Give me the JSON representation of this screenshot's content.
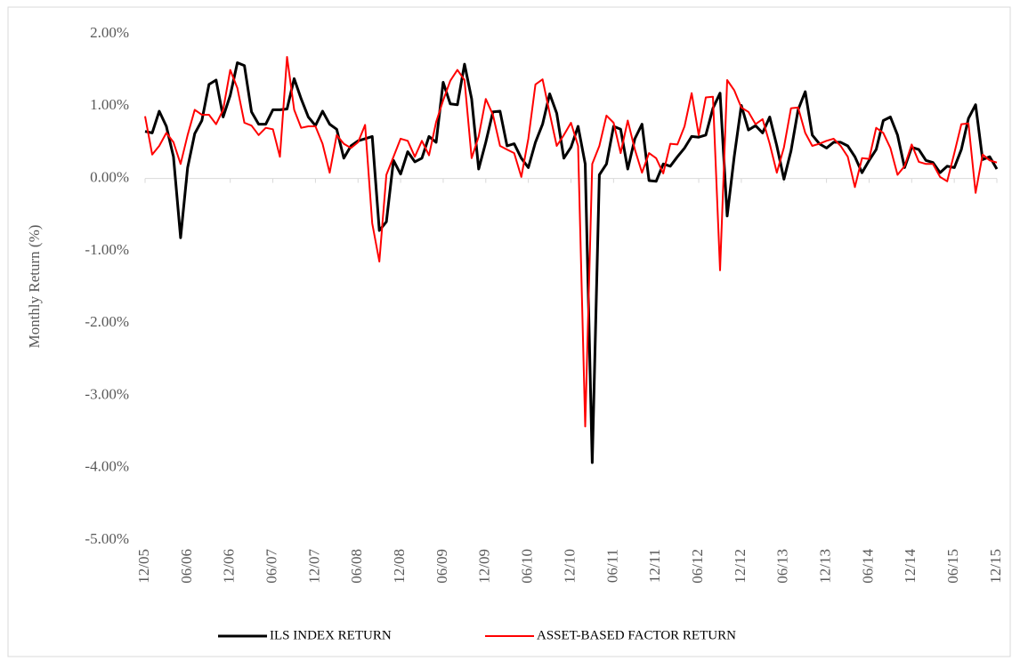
{
  "chart_data": {
    "type": "line",
    "y_label": "Monthly Return (%)",
    "categories": [
      "12/05",
      null,
      null,
      null,
      null,
      null,
      "06/06",
      null,
      null,
      null,
      null,
      null,
      "12/06",
      null,
      null,
      null,
      null,
      null,
      "06/07",
      null,
      null,
      null,
      null,
      null,
      "12/07",
      null,
      null,
      null,
      null,
      null,
      "06/08",
      null,
      null,
      null,
      null,
      null,
      "12/08",
      null,
      null,
      null,
      null,
      null,
      "06/09",
      null,
      null,
      null,
      null,
      null,
      "12/09",
      null,
      null,
      null,
      null,
      null,
      "06/10",
      null,
      null,
      null,
      null,
      null,
      "12/10",
      null,
      null,
      null,
      null,
      null,
      "06/11",
      null,
      null,
      null,
      null,
      null,
      "12/11",
      null,
      null,
      null,
      null,
      null,
      "06/12",
      null,
      null,
      null,
      null,
      null,
      "12/12",
      null,
      null,
      null,
      null,
      null,
      "06/13",
      null,
      null,
      null,
      null,
      null,
      "12/13",
      null,
      null,
      null,
      null,
      null,
      "06/14",
      null,
      null,
      null,
      null,
      null,
      "12/14",
      null,
      null,
      null,
      null,
      null,
      "06/15",
      null,
      null,
      null,
      null,
      null,
      "12/15"
    ],
    "series": [
      {
        "name": "ILS INDEX RETURN",
        "color": "#000000",
        "values": [
          0.65,
          0.63,
          0.93,
          0.72,
          0.3,
          -0.82,
          0.15,
          0.62,
          0.8,
          1.3,
          1.36,
          0.85,
          1.15,
          1.6,
          1.56,
          0.92,
          0.75,
          0.75,
          0.95,
          0.95,
          0.96,
          1.38,
          1.1,
          0.85,
          0.73,
          0.93,
          0.75,
          0.68,
          0.28,
          0.45,
          0.52,
          0.55,
          0.58,
          -0.72,
          -0.6,
          0.25,
          0.06,
          0.37,
          0.23,
          0.28,
          0.58,
          0.5,
          1.33,
          1.03,
          1.02,
          1.58,
          1.1,
          0.13,
          0.5,
          0.92,
          0.93,
          0.45,
          0.48,
          0.28,
          0.15,
          0.5,
          0.75,
          1.17,
          0.9,
          0.28,
          0.43,
          0.72,
          0.2,
          -3.93,
          0.05,
          0.2,
          0.72,
          0.68,
          0.13,
          0.55,
          0.75,
          -0.03,
          -0.04,
          0.2,
          0.17,
          0.3,
          0.42,
          0.58,
          0.57,
          0.6,
          0.97,
          1.18,
          -0.52,
          0.3,
          1.01,
          0.67,
          0.73,
          0.63,
          0.85,
          0.45,
          -0.01,
          0.38,
          0.95,
          1.2,
          0.6,
          0.48,
          0.42,
          0.5,
          0.5,
          0.45,
          0.3,
          0.08,
          0.25,
          0.4,
          0.8,
          0.85,
          0.6,
          0.15,
          0.43,
          0.4,
          0.25,
          0.22,
          0.08,
          0.17,
          0.15,
          0.4,
          0.83,
          1.02,
          0.26,
          0.3,
          0.13
        ]
      },
      {
        "name": "ASSET-BASED FACTOR RETURN",
        "color": "#ff0000",
        "values": [
          0.86,
          0.33,
          0.45,
          0.63,
          0.5,
          0.2,
          0.6,
          0.95,
          0.88,
          0.88,
          0.75,
          0.95,
          1.5,
          1.25,
          0.77,
          0.73,
          0.6,
          0.7,
          0.68,
          0.3,
          1.68,
          0.95,
          0.7,
          0.72,
          0.72,
          0.48,
          0.08,
          0.6,
          0.48,
          0.42,
          0.5,
          0.74,
          -0.62,
          -1.15,
          0.05,
          0.3,
          0.55,
          0.52,
          0.3,
          0.52,
          0.32,
          0.78,
          1.08,
          1.35,
          1.5,
          1.36,
          0.28,
          0.58,
          1.1,
          0.88,
          0.45,
          0.4,
          0.35,
          0.02,
          0.55,
          1.3,
          1.37,
          0.9,
          0.45,
          0.6,
          0.77,
          0.45,
          -3.43,
          0.2,
          0.45,
          0.87,
          0.77,
          0.35,
          0.8,
          0.4,
          0.08,
          0.35,
          0.28,
          0.07,
          0.48,
          0.47,
          0.72,
          1.18,
          0.6,
          1.12,
          1.13,
          -1.27,
          1.36,
          1.22,
          0.98,
          0.92,
          0.75,
          0.82,
          0.48,
          0.08,
          0.43,
          0.97,
          0.98,
          0.63,
          0.45,
          0.48,
          0.52,
          0.55,
          0.45,
          0.3,
          -0.12,
          0.28,
          0.27,
          0.7,
          0.63,
          0.42,
          0.05,
          0.17,
          0.47,
          0.23,
          0.2,
          0.2,
          0.02,
          -0.04,
          0.35,
          0.75,
          0.76,
          -0.2,
          0.33,
          0.25,
          0.22
        ]
      }
    ],
    "ylim": [
      -5,
      2
    ],
    "yticks": [
      {
        "value": -5,
        "label": "-5.00%"
      },
      {
        "value": -4,
        "label": "-4.00%"
      },
      {
        "value": -3,
        "label": "-3.00%"
      },
      {
        "value": -2,
        "label": "-2.00%"
      },
      {
        "value": -1,
        "label": "-1.00%"
      },
      {
        "value": 0,
        "label": "0.00%"
      },
      {
        "value": 1,
        "label": "1.00%"
      },
      {
        "value": 2,
        "label": "2.00%"
      }
    ],
    "grid": false,
    "legend": "bottom"
  }
}
